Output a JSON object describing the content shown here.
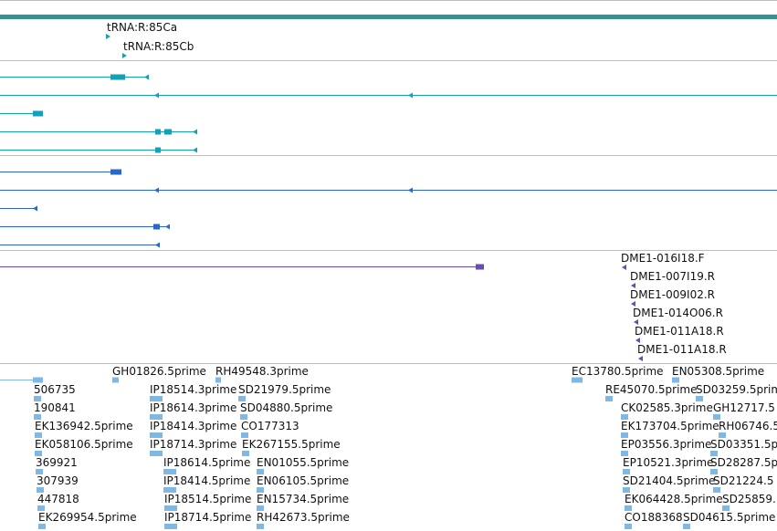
{
  "colors": {
    "scale_bar": "#3f8f8f",
    "divider": "#bdbdbd",
    "trna": "#1f9fb4",
    "transcript_teal": "#14a0b7",
    "transcript_blue": "#2c67c8",
    "bac_purple": "#6a4bb0",
    "est": "#7fb8e2"
  },
  "tracks": {
    "trna": [
      {
        "id": "trna-1",
        "label": "tRNA:R:85Ca"
      },
      {
        "id": "trna-2",
        "label": "tRNA:R:85Cb"
      }
    ],
    "bac_ends": [
      "DME1-016I18.F",
      "DME1-007I19.R",
      "DME1-009I02.R",
      "DME1-014O06.R",
      "DME1-011A18.R",
      "DME1-011A18.R"
    ],
    "est_labels": [
      "GH01826.5prime",
      "RH49548.3prime",
      "EC13780.5prime",
      "EN05308.5prime",
      "506735",
      "IP18514.3prime",
      "SD21979.5prime",
      "RE45070.5prime",
      "SD03259.5prime",
      "190841",
      "IP18614.3prime",
      "SD04880.5prime",
      "CK02585.3prime",
      "GH12717.5",
      "EK136942.5prime",
      "IP18414.3prime",
      "CO177313",
      "EK173704.5prime",
      "RH06746.5",
      "EK058106.5prime",
      "IP18714.3prime",
      "EK267155.5prime",
      "EP03556.3prime",
      "SD03351.5p",
      "369921",
      "IP18614.5prime",
      "EN01055.5prime",
      "EP10521.3prime",
      "SD28287.5p",
      "307939",
      "IP18414.5prime",
      "EN06105.5prime",
      "SD21404.5prime",
      "SD21224.5",
      "447818",
      "IP18514.5prime",
      "EN15734.5prime",
      "EK064428.5prime",
      "SD25859.",
      "EK269954.5prime",
      "IP18714.5prime",
      "RH42673.5prime",
      "CO188368",
      "SD04615.5prime"
    ]
  }
}
